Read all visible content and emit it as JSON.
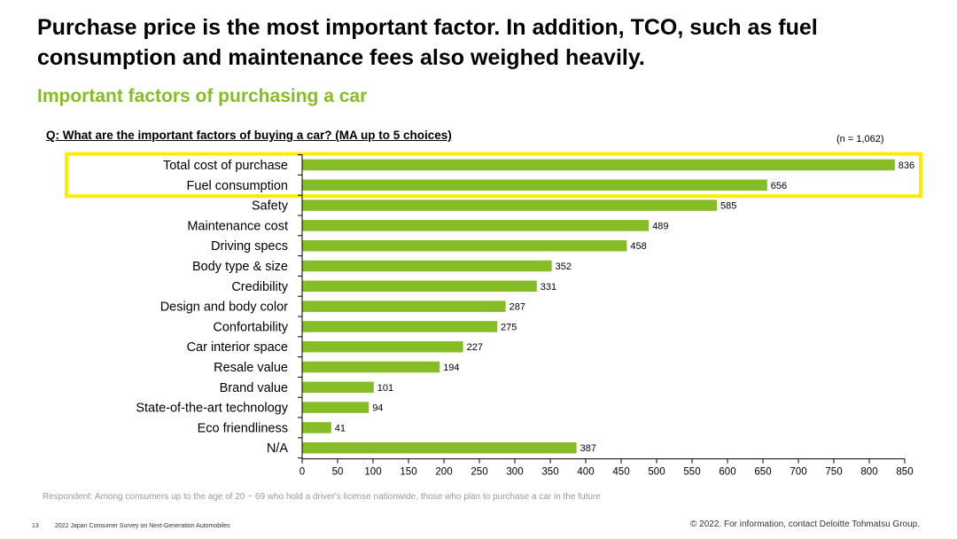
{
  "headline": "Purchase price is the most important factor. In addition, TCO, such as fuel consumption and maintenance fees also weighed heavily.",
  "subtitle": "Important factors of purchasing a car",
  "question": "Q: What are the important factors of buying a car? (MA up to 5 choices)",
  "sample_size": "(n = 1,062)",
  "respondent_note": "Respondent: Among consumers up to the age of 20 ~ 69 who hold a driver's license nationwide, those who plan to purchase a car in the future",
  "footer": {
    "page_number": "13",
    "survey_name": "2022 Japan Consumer Survey on Next-Generation Automobiles",
    "copyright": "© 2022. For information, contact Deloitte Tohmatsu Group."
  },
  "colors": {
    "bar": "#86BC25",
    "highlight": "#FFEB00",
    "accent": "#86BC25"
  },
  "chart_data": {
    "type": "bar",
    "orientation": "horizontal",
    "categories": [
      "Total cost of purchase",
      "Fuel consumption",
      "Safety",
      "Maintenance cost",
      "Driving specs",
      "Body type & size",
      "Credibility",
      "Design and body color",
      "Confortability",
      "Car interior space",
      "Resale value",
      "Brand value",
      "State-of-the-art technology",
      "Eco friendliness",
      "N/A"
    ],
    "values": [
      836,
      656,
      585,
      489,
      458,
      352,
      331,
      287,
      275,
      227,
      194,
      101,
      94,
      41,
      387
    ],
    "xlim": [
      0,
      850
    ],
    "xticks": [
      0,
      50,
      100,
      150,
      200,
      250,
      300,
      350,
      400,
      450,
      500,
      550,
      600,
      650,
      700,
      750,
      800,
      850
    ],
    "highlighted_categories": [
      "Total cost of purchase",
      "Fuel consumption"
    ],
    "grid": false,
    "legend": "none"
  }
}
